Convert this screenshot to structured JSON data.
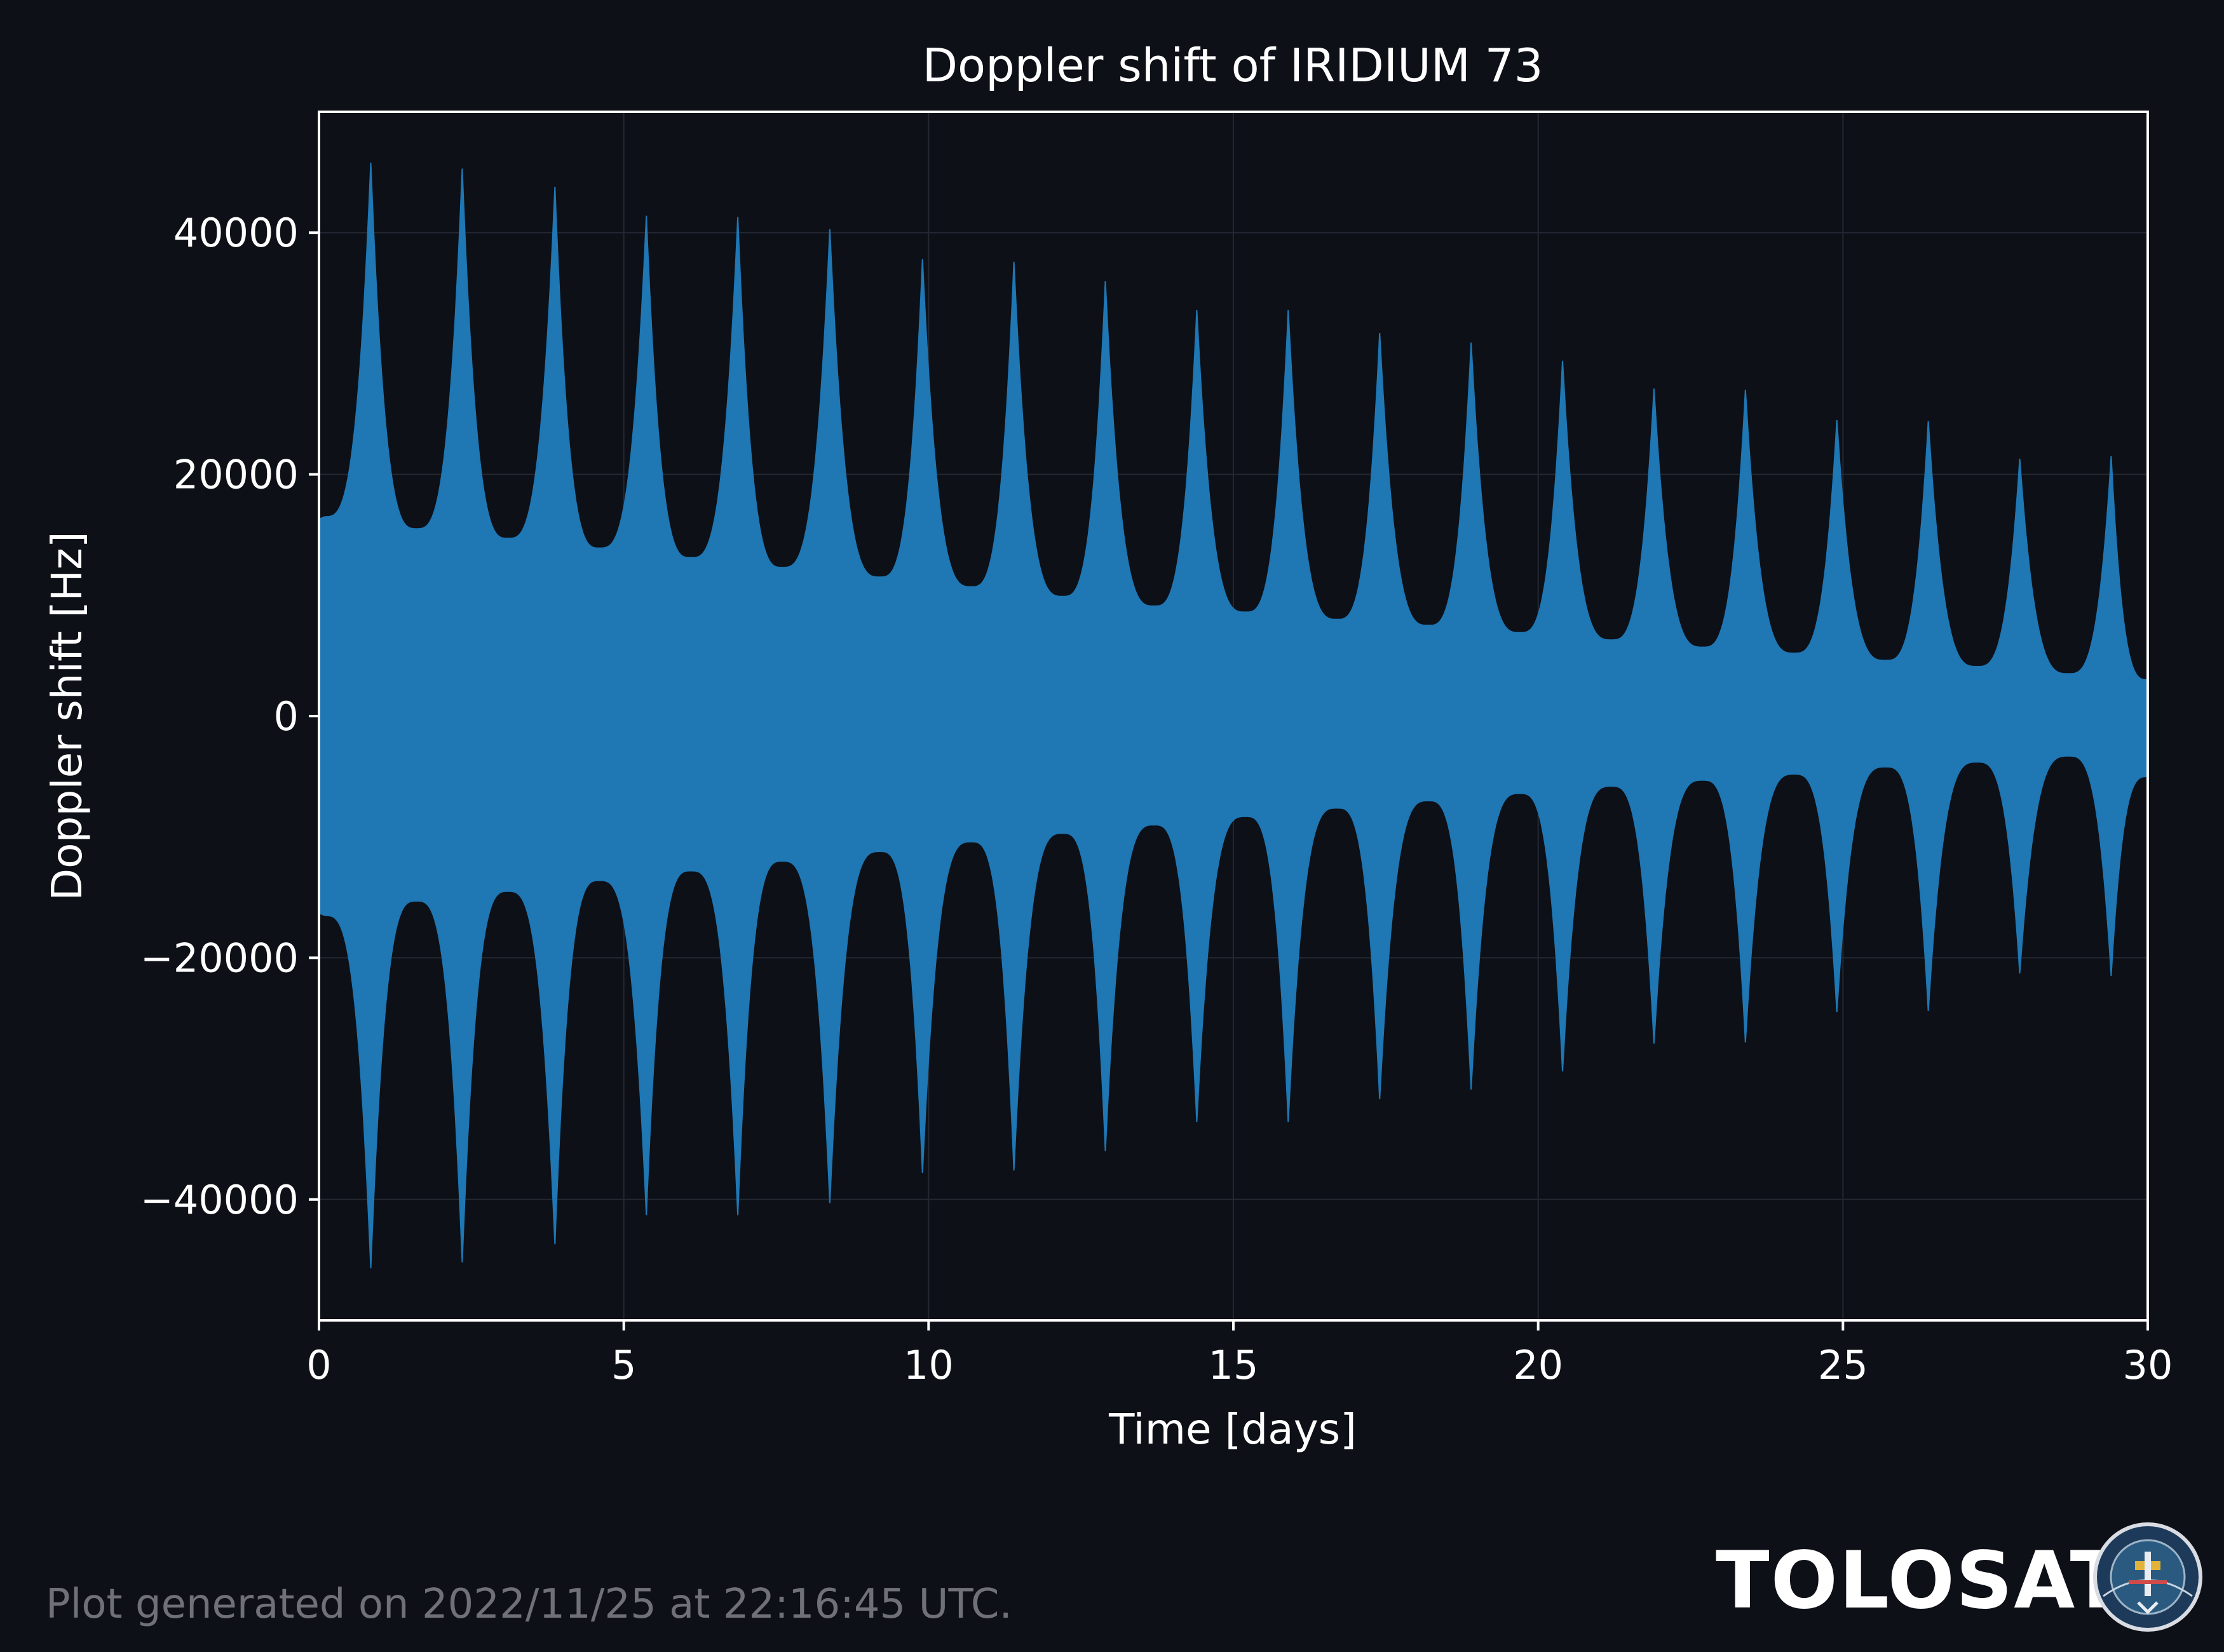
{
  "chart_data": {
    "type": "area",
    "title": "Doppler shift of IRIDIUM 73",
    "xlabel": "Time [days]",
    "ylabel": "Doppler shift [Hz]",
    "xlim": [
      0,
      30
    ],
    "ylim": [
      -50000,
      50000
    ],
    "xticks": [
      0,
      5,
      10,
      15,
      20,
      25,
      30
    ],
    "xtick_labels": [
      "0",
      "5",
      "10",
      "15",
      "20",
      "25",
      "30"
    ],
    "yticks": [
      40000,
      20000,
      0,
      -20000,
      -40000
    ],
    "ytick_labels": [
      "40000",
      "20000",
      "0",
      "−20000",
      "−40000"
    ],
    "grid": true,
    "series": [
      {
        "color": "#1f77b4",
        "envelope_peaks": [
          {
            "x": 0.85,
            "max": 45800,
            "min": -45700
          },
          {
            "x": 2.35,
            "max": 45300,
            "min": -45200
          },
          {
            "x": 3.87,
            "max": 43800,
            "min": -43700
          },
          {
            "x": 5.37,
            "max": 41400,
            "min": -41300
          },
          {
            "x": 6.87,
            "max": 41300,
            "min": -41300
          },
          {
            "x": 8.38,
            "max": 40300,
            "min": -40300
          },
          {
            "x": 9.9,
            "max": 37800,
            "min": -37800
          },
          {
            "x": 11.4,
            "max": 37600,
            "min": -37600
          },
          {
            "x": 12.9,
            "max": 36000,
            "min": -36000
          },
          {
            "x": 14.4,
            "max": 33600,
            "min": -33600
          },
          {
            "x": 15.9,
            "max": 33600,
            "min": -33600
          },
          {
            "x": 17.4,
            "max": 31700,
            "min": -31700
          },
          {
            "x": 18.9,
            "max": 30900,
            "min": -30900
          },
          {
            "x": 20.4,
            "max": 29400,
            "min": -29400
          },
          {
            "x": 21.9,
            "max": 27100,
            "min": -27100
          },
          {
            "x": 23.4,
            "max": 27000,
            "min": -27000
          },
          {
            "x": 24.9,
            "max": 24500,
            "min": -24500
          },
          {
            "x": 26.4,
            "max": 24400,
            "min": -24400
          },
          {
            "x": 27.9,
            "max": 21300,
            "min": -21300
          },
          {
            "x": 29.4,
            "max": 21500,
            "min": -21500
          }
        ],
        "envelope_troughs": [
          {
            "x": 0.1,
            "max": 16500,
            "min": -16500
          },
          {
            "x": 1.6,
            "max": 15500,
            "min": -15300
          },
          {
            "x": 3.1,
            "max": 14700,
            "min": -14500
          },
          {
            "x": 4.6,
            "max": 13900,
            "min": -13600
          },
          {
            "x": 6.1,
            "max": 13100,
            "min": -12800
          },
          {
            "x": 7.6,
            "max": 12300,
            "min": -12000
          },
          {
            "x": 9.2,
            "max": 11500,
            "min": -11200
          },
          {
            "x": 10.7,
            "max": 10700,
            "min": -10400
          },
          {
            "x": 12.2,
            "max": 9900,
            "min": -9700
          },
          {
            "x": 13.7,
            "max": 9100,
            "min": -9000
          },
          {
            "x": 15.2,
            "max": 8600,
            "min": -8300
          },
          {
            "x": 16.7,
            "max": 8000,
            "min": -7600
          },
          {
            "x": 18.2,
            "max": 7500,
            "min": -7000
          },
          {
            "x": 19.7,
            "max": 6900,
            "min": -6400
          },
          {
            "x": 21.2,
            "max": 6300,
            "min": -5800
          },
          {
            "x": 22.7,
            "max": 5700,
            "min": -5300
          },
          {
            "x": 24.2,
            "max": 5200,
            "min": -4800
          },
          {
            "x": 25.7,
            "max": 4600,
            "min": -4200
          },
          {
            "x": 27.2,
            "max": 4100,
            "min": -3800
          },
          {
            "x": 28.7,
            "max": 3500,
            "min": -3300
          },
          {
            "x": 30.0,
            "max": 3000,
            "min": -5000
          }
        ]
      }
    ]
  },
  "footer": {
    "generated_text": "Plot generated on 2022/11/25 at 22:16:45 UTC.",
    "brand": "TOLOSAT",
    "logo_icon": "tolosat-badge-icon"
  },
  "colors": {
    "background": "#0d1017",
    "series": "#1f77b4",
    "text": "#ffffff",
    "muted_text": "#6f7176"
  }
}
